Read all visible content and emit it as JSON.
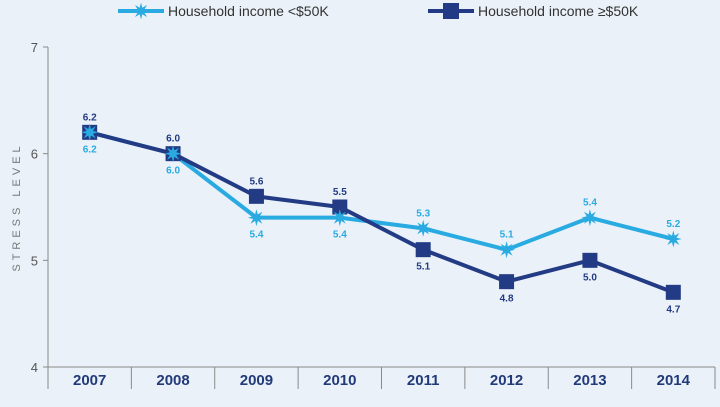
{
  "chart_data": {
    "type": "line",
    "title": "",
    "xlabel": "",
    "ylabel": "STRESS LEVEL",
    "ylim": [
      4,
      7
    ],
    "yticks": [
      4,
      5,
      6,
      7
    ],
    "categories": [
      "2007",
      "2008",
      "2009",
      "2010",
      "2011",
      "2012",
      "2013",
      "2014"
    ],
    "legend_position": "top",
    "grid": false,
    "series": [
      {
        "name": "Household income <$50K",
        "marker": "star-icon",
        "color": "#29abe2",
        "values": [
          6.2,
          6.0,
          5.4,
          5.4,
          5.3,
          5.1,
          5.4,
          5.2
        ],
        "labels": [
          "6.2",
          "6.0",
          "5.4",
          "5.4",
          "5.3",
          "5.1",
          "5.4",
          "5.2"
        ]
      },
      {
        "name": "Household income ≥$50K",
        "marker": "square-icon",
        "color": "#233b84",
        "values": [
          6.2,
          6.0,
          5.6,
          5.5,
          5.1,
          4.8,
          5.0,
          4.7
        ],
        "labels": [
          "6.2",
          "6.0",
          "5.6",
          "5.5",
          "5.1",
          "4.8",
          "5.0",
          "4.7"
        ]
      }
    ]
  }
}
